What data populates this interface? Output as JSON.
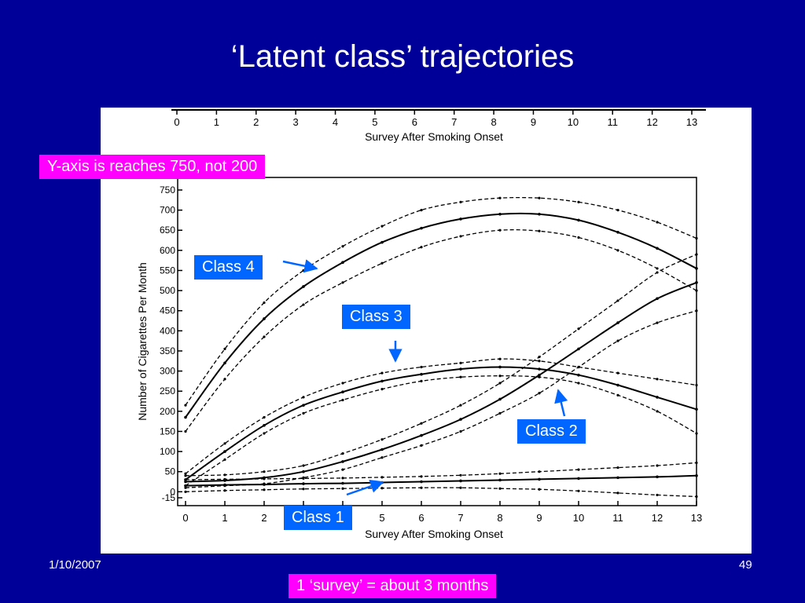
{
  "slide": {
    "title": "‘Latent class’ trajectories",
    "date": "1/10/2007",
    "page_number": "49"
  },
  "annotations": {
    "y_axis_note": "Y-axis is reaches 750, not 200",
    "survey_note": "1 ‘survey’ = about 3 months",
    "class_labels": [
      "Class 4",
      "Class 3",
      "Class 2",
      "Class 1"
    ],
    "callout_color": "#0066ff",
    "note_color": "#ff00ff"
  },
  "chart_data": {
    "type": "line",
    "xlabel": "Survey After Smoking Onset",
    "ylabel": "Number of Cigarettes Per Month",
    "x": [
      0,
      1,
      2,
      3,
      4,
      5,
      6,
      7,
      8,
      9,
      10,
      11,
      12,
      13
    ],
    "x_tick_labels": [
      "0",
      "1",
      "2",
      "3",
      "4",
      "5",
      "6",
      "7",
      "8",
      "9",
      "10",
      "11",
      "12",
      "13"
    ],
    "y_ticks": [
      -15,
      0,
      50,
      100,
      150,
      200,
      250,
      300,
      350,
      400,
      450,
      500,
      550,
      600,
      650,
      700,
      750
    ],
    "xlim": [
      0,
      13
    ],
    "ylim": [
      -15,
      750
    ],
    "grid": false,
    "line_style_center": "solid",
    "line_style_bounds": "dashed",
    "series": [
      {
        "name": "Class 4",
        "values": [
          185,
          320,
          430,
          510,
          570,
          620,
          655,
          678,
          690,
          690,
          675,
          645,
          605,
          555
        ],
        "lower": [
          150,
          280,
          385,
          465,
          520,
          568,
          608,
          635,
          650,
          648,
          632,
          600,
          555,
          500
        ],
        "upper": [
          215,
          355,
          470,
          550,
          610,
          660,
          700,
          720,
          730,
          730,
          720,
          700,
          670,
          630
        ]
      },
      {
        "name": "Class 3",
        "values": [
          30,
          100,
          165,
          215,
          248,
          275,
          292,
          305,
          310,
          305,
          290,
          265,
          235,
          205
        ],
        "lower": [
          15,
          80,
          145,
          195,
          228,
          255,
          275,
          285,
          288,
          285,
          270,
          240,
          200,
          145
        ],
        "upper": [
          45,
          120,
          185,
          235,
          270,
          295,
          310,
          320,
          330,
          325,
          310,
          295,
          280,
          265
        ]
      },
      {
        "name": "Class 2",
        "values": [
          25,
          28,
          35,
          50,
          75,
          105,
          140,
          180,
          230,
          290,
          355,
          420,
          480,
          520
        ],
        "lower": [
          10,
          15,
          20,
          35,
          55,
          85,
          115,
          150,
          195,
          245,
          310,
          375,
          420,
          450
        ],
        "upper": [
          40,
          42,
          50,
          65,
          95,
          130,
          170,
          215,
          270,
          335,
          405,
          475,
          545,
          590
        ]
      },
      {
        "name": "Class 1",
        "values": [
          15,
          17,
          18,
          20,
          21,
          23,
          25,
          27,
          29,
          31,
          33,
          35,
          37,
          40
        ],
        "lower": [
          0,
          3,
          5,
          7,
          8,
          9,
          10,
          10,
          8,
          6,
          2,
          -3,
          -8,
          -12
        ],
        "upper": [
          30,
          31,
          32,
          33,
          34,
          36,
          38,
          41,
          45,
          50,
          55,
          60,
          65,
          72
        ]
      }
    ]
  }
}
